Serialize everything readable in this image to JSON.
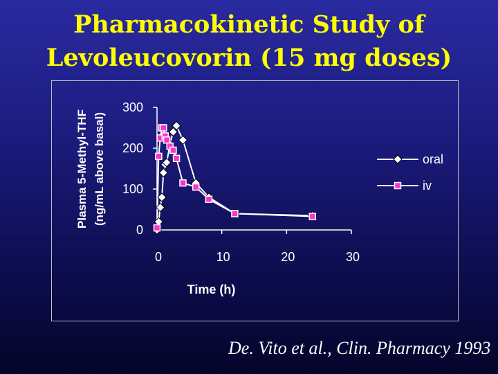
{
  "slide": {
    "title_line1": "Pharmacokinetic Study of",
    "title_line2": "Levoleucovorin (15 mg doses)",
    "citation": "De. Vito et al., Clin. Pharmacy 1993"
  },
  "colors": {
    "title": "#ffff00",
    "axis": "#ffffff",
    "oral_marker": "#ffffff",
    "iv_marker": "#ff33cc",
    "text": "#ffffff"
  },
  "chart_data": {
    "type": "line",
    "title": "",
    "xlabel": "Time (h)",
    "ylabel_line1": "Plasma 5-Methyl-THF",
    "ylabel_line2": "(ng/mL above basal)",
    "xlim": [
      0,
      30
    ],
    "ylim": [
      0,
      300
    ],
    "x_ticks": [
      "0",
      "10",
      "20",
      "30"
    ],
    "y_ticks": [
      "0",
      "100",
      "200",
      "300"
    ],
    "grid": false,
    "legend_position": "right",
    "series": [
      {
        "name": "oral",
        "marker": "diamond",
        "x": [
          0,
          0.25,
          0.5,
          0.75,
          1,
          1.25,
          1.5,
          2,
          2.5,
          3,
          4,
          6,
          8,
          12,
          24
        ],
        "y": [
          0,
          20,
          55,
          80,
          140,
          160,
          165,
          210,
          240,
          255,
          220,
          115,
          80,
          40,
          35
        ]
      },
      {
        "name": "iv",
        "marker": "square",
        "x": [
          0,
          0.25,
          0.5,
          0.75,
          1,
          1.25,
          1.5,
          2,
          2.5,
          3,
          4,
          6,
          8,
          12,
          24
        ],
        "y": [
          5,
          180,
          225,
          250,
          250,
          230,
          220,
          205,
          195,
          175,
          115,
          105,
          75,
          40,
          33
        ]
      }
    ]
  }
}
